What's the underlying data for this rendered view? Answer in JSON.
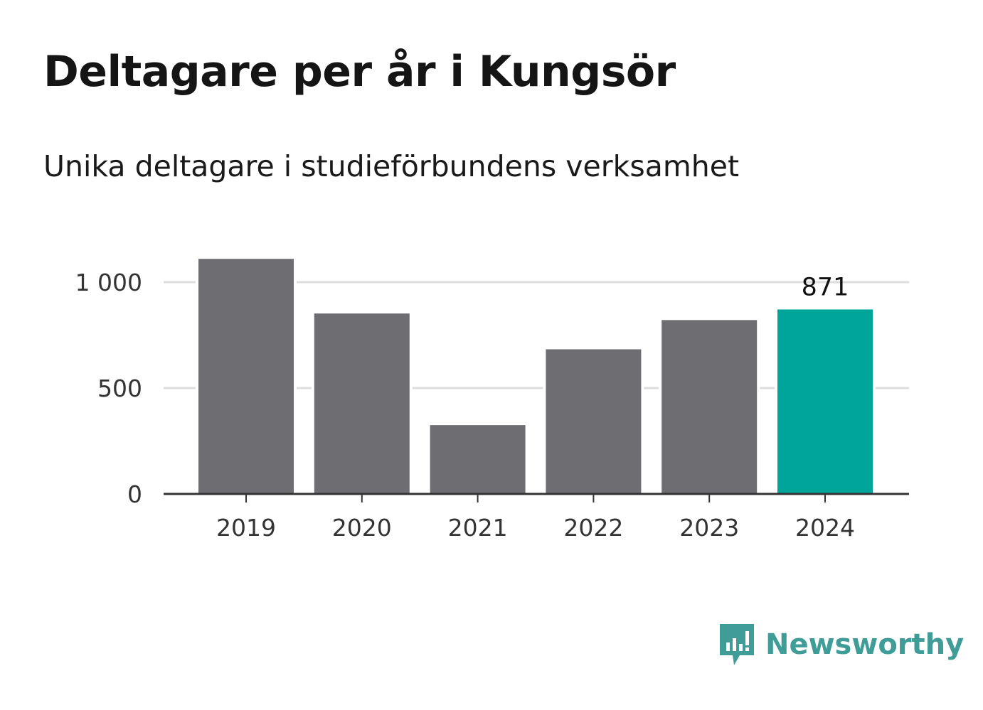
{
  "title": "Deltagare per år i Kungsör",
  "subtitle": "Unika deltagare i studieförbundens verksamhet",
  "brand": {
    "name": "Newsworthy",
    "icon": "newsworthy-logo-icon"
  },
  "colors": {
    "bar": "#6e6d72",
    "highlight": "#00a59a",
    "grid": "#dddddd",
    "axis": "#333333",
    "brand": "#3f9c97"
  },
  "chart_data": {
    "type": "bar",
    "title": "Deltagare per år i Kungsör",
    "subtitle": "Unika deltagare i studieförbundens verksamhet",
    "xlabel": "",
    "ylabel": "",
    "categories": [
      "2019",
      "2020",
      "2021",
      "2022",
      "2023",
      "2024"
    ],
    "values": [
      1110,
      852,
      325,
      683,
      821,
      871
    ],
    "highlight_index": 5,
    "data_labels": [
      {
        "index": 5,
        "text": "871"
      }
    ],
    "ylim": [
      0,
      1100
    ],
    "yticks": [
      0,
      500,
      1000
    ],
    "ytick_labels": [
      "0",
      "500",
      "1 000"
    ],
    "grid": true,
    "legend": "none"
  }
}
